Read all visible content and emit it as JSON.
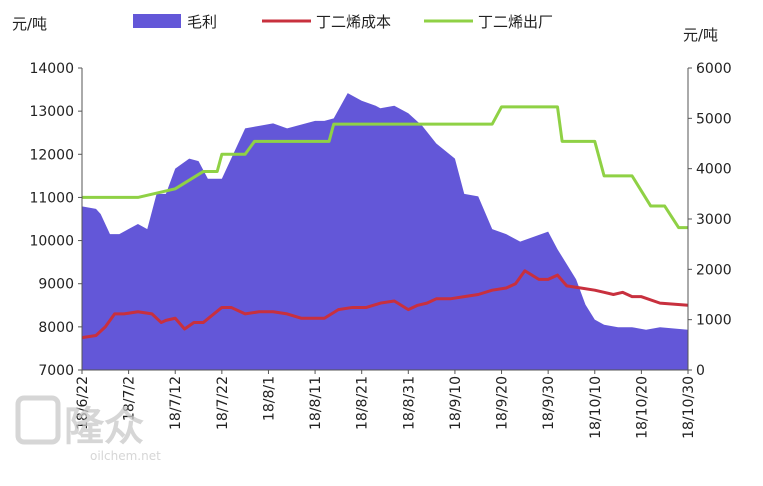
{
  "chart_data": {
    "type": "area",
    "title": "",
    "left_axis": {
      "unit": "元/吨",
      "min": 7000,
      "max": 14000,
      "ticks": [
        7000,
        8000,
        9000,
        10000,
        11000,
        12000,
        13000,
        14000
      ]
    },
    "right_axis": {
      "unit": "元/吨",
      "min": 0,
      "max": 6000,
      "ticks": [
        0,
        1000,
        2000,
        3000,
        4000,
        5000,
        6000
      ]
    },
    "x_ticks": [
      "18/6/22",
      "18/7/2",
      "18/7/12",
      "18/7/22",
      "18/8/1",
      "18/8/11",
      "18/8/21",
      "18/8/31",
      "18/9/10",
      "18/9/20",
      "18/9/30",
      "18/10/10",
      "18/10/20",
      "18/10/30"
    ],
    "legend": {
      "placement": "top"
    },
    "series": [
      {
        "name": "毛利",
        "kind": "area",
        "axis": "right",
        "color": "#6357d8",
        "x_days": [
          0,
          3,
          4,
          6,
          8,
          12,
          14,
          16,
          18,
          20,
          23,
          25,
          27,
          30,
          32,
          35,
          38,
          41,
          44,
          46,
          50,
          52,
          54,
          57,
          60,
          63,
          64,
          67,
          70,
          73,
          76,
          80,
          82,
          85,
          88,
          91,
          94,
          97,
          100,
          102,
          104,
          106,
          108,
          110,
          112,
          115,
          118,
          121,
          124,
          130
        ],
        "values": [
          3250,
          3200,
          3100,
          2700,
          2700,
          2900,
          2800,
          3500,
          3500,
          4000,
          4200,
          4150,
          3800,
          3800,
          4200,
          4800,
          4850,
          4900,
          4800,
          4850,
          4950,
          4950,
          5000,
          5500,
          5350,
          5250,
          5200,
          5250,
          5100,
          4850,
          4500,
          4200,
          3500,
          3450,
          2800,
          2700,
          2550,
          2650,
          2750,
          2400,
          2100,
          1800,
          1300,
          1000,
          900,
          850,
          850,
          800,
          850,
          800
        ]
      },
      {
        "name": "丁二烯成本",
        "kind": "line",
        "axis": "left",
        "color": "#c8303e",
        "x_days": [
          0,
          3,
          5,
          7,
          9,
          12,
          15,
          17,
          18,
          20,
          22,
          24,
          26,
          30,
          32,
          35,
          38,
          41,
          44,
          47,
          52,
          55,
          58,
          61,
          64,
          67,
          70,
          72,
          74,
          76,
          79,
          82,
          85,
          88,
          91,
          93,
          95,
          98,
          100,
          102,
          104,
          107,
          110,
          112,
          114,
          116,
          118,
          120,
          124,
          130
        ],
        "values": [
          7750,
          7800,
          8000,
          8300,
          8300,
          8350,
          8300,
          8100,
          8150,
          8200,
          7950,
          8100,
          8100,
          8450,
          8450,
          8300,
          8350,
          8350,
          8300,
          8200,
          8200,
          8400,
          8450,
          8450,
          8550,
          8600,
          8400,
          8500,
          8550,
          8650,
          8650,
          8700,
          8750,
          8850,
          8900,
          9000,
          9300,
          9100,
          9100,
          9200,
          8950,
          8900,
          8850,
          8800,
          8750,
          8800,
          8700,
          8700,
          8550,
          8500
        ]
      },
      {
        "name": "丁二烯出厂",
        "kind": "line",
        "axis": "left",
        "color": "#8fd145",
        "x_days": [
          0,
          12,
          20,
          26,
          29,
          30,
          35,
          37,
          38,
          39,
          40,
          42,
          43,
          44,
          51,
          53,
          54,
          55,
          66,
          67,
          68,
          75,
          76,
          86,
          87,
          88,
          90,
          93,
          94,
          95,
          96,
          98,
          100,
          101,
          102,
          103,
          108,
          110,
          112,
          113,
          114,
          115,
          116,
          118,
          122,
          125,
          128,
          130
        ],
        "values": [
          11000,
          11000,
          11200,
          11600,
          11600,
          12000,
          12000,
          12300,
          12300,
          12300,
          12300,
          12300,
          12300,
          12300,
          12300,
          12300,
          12700,
          12700,
          12700,
          12700,
          12700,
          12700,
          12700,
          12700,
          12700,
          12700,
          13100,
          13100,
          13100,
          13100,
          13100,
          13100,
          13100,
          13100,
          13100,
          12300,
          12300,
          12300,
          11500,
          11500,
          11500,
          11500,
          11500,
          11500,
          10800,
          10800,
          10300,
          10300
        ]
      }
    ]
  },
  "watermark": {
    "brand": "隆众",
    "site": "oilchem.net"
  }
}
